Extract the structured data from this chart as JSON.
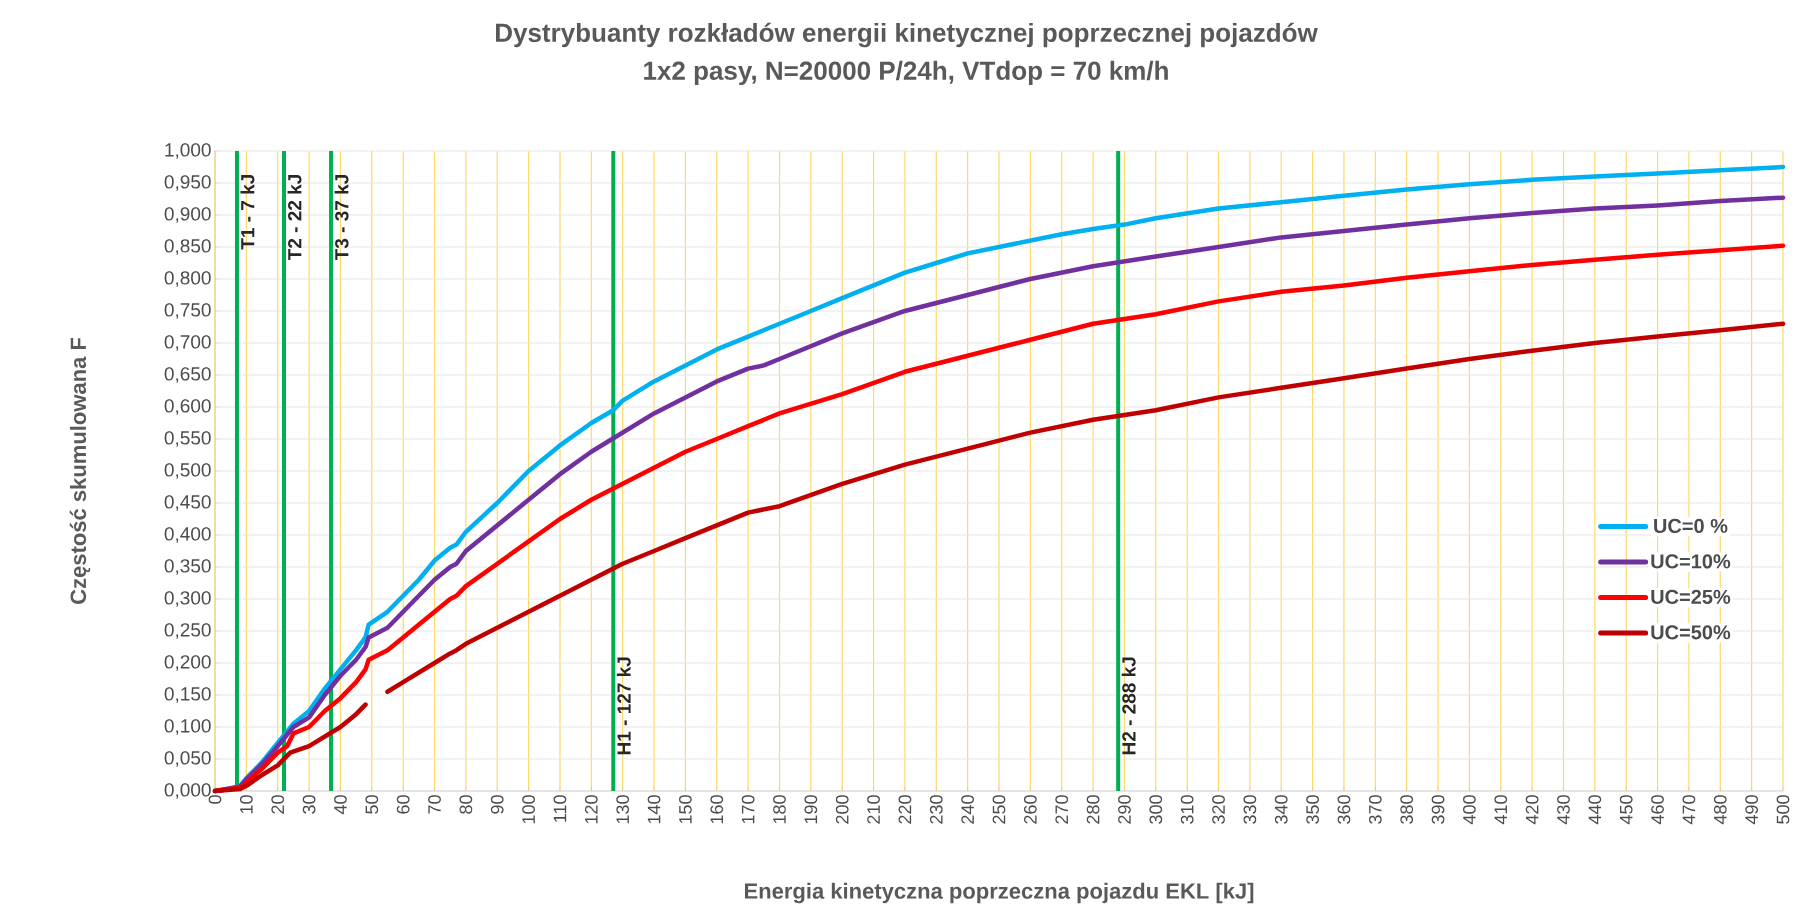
{
  "chart_data": {
    "type": "line",
    "title": "Dystrybuanty rozkładów energii kinetycznej poprzecznej pojazdów",
    "subtitle": "1x2 pasy, N=20000 P/24h, VTdop = 70 km/h",
    "xlabel": "Energia  kinetyczna poprzeczna  pojazdu EKL  [kJ]",
    "ylabel": "Częstość skumulowana  F",
    "xlim": [
      0,
      500
    ],
    "xticks": [
      0,
      10,
      20,
      30,
      40,
      50,
      60,
      70,
      80,
      90,
      100,
      110,
      120,
      130,
      140,
      150,
      160,
      170,
      180,
      190,
      200,
      210,
      220,
      230,
      240,
      250,
      260,
      270,
      280,
      290,
      300,
      310,
      320,
      330,
      340,
      350,
      360,
      370,
      380,
      390,
      400,
      410,
      420,
      430,
      440,
      450,
      460,
      470,
      480,
      490,
      500
    ],
    "ylim": [
      0,
      1
    ],
    "yticks": [
      {
        "value": 0,
        "label": "0,000"
      },
      {
        "value": 0.05,
        "label": "0,050"
      },
      {
        "value": 0.1,
        "label": "0,100"
      },
      {
        "value": 0.15,
        "label": "0,150"
      },
      {
        "value": 0.2,
        "label": "0,200"
      },
      {
        "value": 0.25,
        "label": "0,250"
      },
      {
        "value": 0.3,
        "label": "0,300"
      },
      {
        "value": 0.35,
        "label": "0,350"
      },
      {
        "value": 0.4,
        "label": "0,400"
      },
      {
        "value": 0.45,
        "label": "0,450"
      },
      {
        "value": 0.5,
        "label": "0,500"
      },
      {
        "value": 0.55,
        "label": "0,550"
      },
      {
        "value": 0.6,
        "label": "0,600"
      },
      {
        "value": 0.65,
        "label": "0,650"
      },
      {
        "value": 0.7,
        "label": "0,700"
      },
      {
        "value": 0.75,
        "label": "0,750"
      },
      {
        "value": 0.8,
        "label": "0,800"
      },
      {
        "value": 0.85,
        "label": "0,850"
      },
      {
        "value": 0.9,
        "label": "0,900"
      },
      {
        "value": 0.95,
        "label": "0,950"
      },
      {
        "value": 1,
        "label": "1,000"
      }
    ],
    "grid": true,
    "legend": "right",
    "series": [
      {
        "name": "UC=0 %",
        "color": "#00b0f0",
        "x": [
          0,
          5,
          8,
          10,
          15,
          20,
          25,
          30,
          35,
          40,
          45,
          48,
          49,
          55,
          60,
          65,
          70,
          75,
          77,
          80,
          90,
          100,
          110,
          120,
          127,
          130,
          140,
          150,
          160,
          170,
          175,
          180,
          190,
          200,
          210,
          220,
          230,
          240,
          250,
          260,
          270,
          280,
          290,
          300,
          320,
          340,
          360,
          380,
          400,
          420,
          440,
          460,
          480,
          500
        ],
        "values": [
          0,
          0.003,
          0.008,
          0.02,
          0.045,
          0.075,
          0.105,
          0.125,
          0.16,
          0.19,
          0.22,
          0.24,
          0.26,
          0.28,
          0.305,
          0.33,
          0.36,
          0.38,
          0.385,
          0.405,
          0.45,
          0.5,
          0.54,
          0.575,
          0.595,
          0.61,
          0.64,
          0.665,
          0.69,
          0.71,
          0.72,
          0.73,
          0.75,
          0.77,
          0.79,
          0.81,
          0.825,
          0.84,
          0.85,
          0.86,
          0.87,
          0.878,
          0.885,
          0.895,
          0.91,
          0.92,
          0.93,
          0.94,
          0.948,
          0.955,
          0.96,
          0.965,
          0.97,
          0.975
        ]
      },
      {
        "name": "UC=10%",
        "color": "#7030a0",
        "x": [
          0,
          8,
          10,
          15,
          20,
          25,
          30,
          35,
          40,
          45,
          48,
          49,
          55,
          60,
          70,
          75,
          77,
          80,
          90,
          100,
          110,
          120,
          130,
          140,
          150,
          160,
          170,
          175,
          180,
          200,
          220,
          240,
          260,
          280,
          300,
          320,
          340,
          360,
          380,
          400,
          420,
          440,
          460,
          480,
          500
        ],
        "values": [
          0,
          0.007,
          0.018,
          0.042,
          0.07,
          0.1,
          0.115,
          0.15,
          0.18,
          0.205,
          0.225,
          0.24,
          0.255,
          0.28,
          0.33,
          0.35,
          0.355,
          0.375,
          0.415,
          0.455,
          0.495,
          0.53,
          0.56,
          0.59,
          0.615,
          0.64,
          0.66,
          0.665,
          0.675,
          0.715,
          0.75,
          0.775,
          0.8,
          0.82,
          0.835,
          0.85,
          0.865,
          0.875,
          0.885,
          0.895,
          0.903,
          0.91,
          0.915,
          0.922,
          0.927
        ]
      },
      {
        "name": "UC=25%",
        "color": "#ff0000",
        "x": [
          0,
          8,
          10,
          15,
          20,
          23,
          25,
          30,
          35,
          40,
          45,
          48,
          49,
          55,
          60,
          70,
          75,
          77,
          80,
          90,
          100,
          110,
          120,
          130,
          140,
          150,
          160,
          170,
          175,
          180,
          200,
          220,
          240,
          260,
          280,
          300,
          320,
          340,
          360,
          380,
          400,
          420,
          440,
          460,
          480,
          500
        ],
        "values": [
          0,
          0.005,
          0.013,
          0.035,
          0.06,
          0.07,
          0.09,
          0.1,
          0.125,
          0.145,
          0.17,
          0.19,
          0.205,
          0.22,
          0.24,
          0.28,
          0.3,
          0.305,
          0.32,
          0.355,
          0.39,
          0.425,
          0.455,
          0.48,
          0.505,
          0.53,
          0.55,
          0.57,
          0.58,
          0.59,
          0.62,
          0.655,
          0.68,
          0.705,
          0.73,
          0.745,
          0.765,
          0.78,
          0.79,
          0.802,
          0.812,
          0.822,
          0.83,
          0.838,
          0.845,
          0.852
        ]
      },
      {
        "name": "UC=50%",
        "color": "#c00000",
        "x": [
          0,
          5,
          8,
          10,
          15,
          20,
          22,
          24,
          30,
          35,
          40,
          45,
          48,
          51,
          55,
          60,
          70,
          75,
          77,
          80,
          90,
          100,
          110,
          120,
          130,
          140,
          150,
          160,
          170,
          180,
          200,
          220,
          240,
          260,
          280,
          300,
          320,
          340,
          360,
          380,
          400,
          420,
          440,
          460,
          480,
          500
        ],
        "values": [
          0,
          0.002,
          0.003,
          0.008,
          0.025,
          0.04,
          0.05,
          0.06,
          0.07,
          0.085,
          0.1,
          0.12,
          0.135,
          null,
          0.155,
          0.17,
          0.2,
          0.215,
          0.22,
          0.23,
          0.255,
          0.28,
          0.305,
          0.33,
          0.355,
          0.375,
          0.395,
          0.415,
          0.435,
          0.445,
          0.48,
          0.51,
          0.535,
          0.56,
          0.58,
          0.595,
          0.615,
          0.63,
          0.645,
          0.66,
          0.675,
          0.688,
          0.7,
          0.71,
          0.72,
          0.73
        ]
      }
    ],
    "ref_lines": [
      {
        "axis": "x",
        "value": 7,
        "label": "T1 - 7 kJ",
        "color": "#00b050"
      },
      {
        "axis": "x",
        "value": 22,
        "label": "T2 - 22 kJ",
        "color": "#00b050"
      },
      {
        "axis": "x",
        "value": 37,
        "label": "T3 - 37 kJ",
        "color": "#00b050"
      },
      {
        "axis": "x",
        "value": 127,
        "label": "H1 - 127 kJ",
        "color": "#00b050"
      },
      {
        "axis": "x",
        "value": 288,
        "label": "H2 - 288 kJ",
        "color": "#00b050"
      }
    ]
  }
}
